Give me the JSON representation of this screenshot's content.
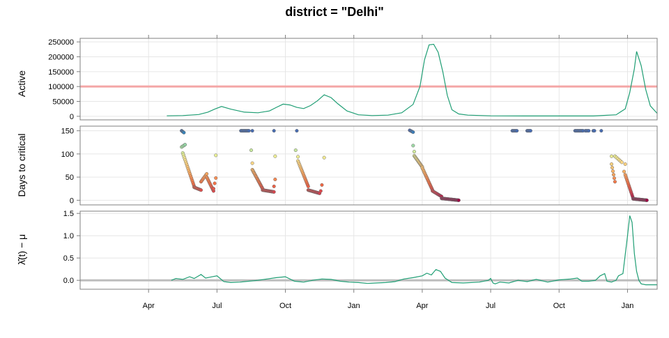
{
  "chart_data": {
    "type": "line",
    "title": "district = \"Delhi\"",
    "x_tick_labels": [
      "Apr",
      "Jul",
      "Oct",
      "Jan",
      "Apr",
      "Jul",
      "Oct",
      "Jan"
    ],
    "x_axis_month_index_range": [
      0,
      25.3
    ],
    "x_tick_month_index": [
      3,
      6,
      9,
      12,
      15,
      18,
      21,
      24
    ],
    "colors": {
      "line": "#1f9e74",
      "threshold": "#f4a6a6",
      "zero_line": "#bdbdbd",
      "point_outline": "#6b6b6b"
    },
    "panels": [
      {
        "ylabel": "Active",
        "type": "line",
        "ylim": [
          -12000,
          262000
        ],
        "y_ticks": [
          0,
          50000,
          100000,
          150000,
          200000,
          250000
        ],
        "y_tick_labels": [
          "0",
          "50000",
          "100000",
          "150000",
          "200000",
          "250000"
        ],
        "reference_line": 100000,
        "series": [
          {
            "x": [
              3.8,
              4.5,
              5.2,
              5.6,
              5.9,
              6.2,
              6.6,
              7.2,
              7.8,
              8.3,
              8.6,
              8.9,
              9.2,
              9.5,
              9.8,
              10.1,
              10.4,
              10.7,
              11.0,
              11.3,
              11.7,
              12.2,
              12.8,
              13.5,
              14.1,
              14.6,
              14.9,
              15.1,
              15.3,
              15.5,
              15.7,
              15.9,
              16.1,
              16.3,
              16.6,
              17.0,
              18.0,
              19.5,
              21.0,
              22.5,
              23.5,
              23.9,
              24.1,
              24.3,
              24.4,
              24.6,
              24.8,
              25.0,
              25.3
            ],
            "y": [
              1500,
              2500,
              6000,
              14000,
              24000,
              33000,
              24000,
              14000,
              12000,
              18000,
              30000,
              41000,
              38000,
              30000,
              26000,
              36000,
              52000,
              72000,
              63000,
              42000,
              18000,
              5000,
              2500,
              4000,
              12000,
              40000,
              100000,
              190000,
              240000,
              242000,
              215000,
              150000,
              70000,
              22000,
              8000,
              4000,
              1500,
              1000,
              1000,
              1200,
              5000,
              25000,
              80000,
              160000,
              218000,
              170000,
              90000,
              35000,
              10000
            ]
          }
        ]
      },
      {
        "ylabel": "Days to critical",
        "type": "scatter",
        "ylim": [
          -10,
          160
        ],
        "y_ticks": [
          0,
          50,
          100,
          150
        ],
        "y_tick_labels": [
          "0",
          "50",
          "100",
          "150"
        ],
        "point_color_scale": "value mapped red (0) -> orange -> pale yellow -> green -> blue -> indigo (150)",
        "clusters": [
          {
            "x0": 4.45,
            "x1": 4.55,
            "n": 5,
            "y0": 150,
            "y1": 146
          },
          {
            "x0": 4.45,
            "x1": 4.6,
            "n": 4,
            "y0": 115,
            "y1": 120
          },
          {
            "x0": 4.5,
            "x1": 5.0,
            "n": 20,
            "y0": 102,
            "y1": 30
          },
          {
            "x0": 5.0,
            "x1": 5.3,
            "n": 10,
            "y0": 28,
            "y1": 22
          },
          {
            "x0": 5.3,
            "x1": 5.55,
            "n": 8,
            "y0": 40,
            "y1": 57
          },
          {
            "x0": 5.55,
            "x1": 5.85,
            "n": 12,
            "y0": 50,
            "y1": 20
          },
          {
            "x0": 5.85,
            "x1": 5.95,
            "n": 3,
            "y0": 25,
            "y1": 48
          },
          {
            "x0": 5.95,
            "x1": 5.95,
            "n": 1,
            "y0": 97,
            "y1": 97
          },
          {
            "x0": 7.05,
            "x1": 7.4,
            "n": 10,
            "y0": 150,
            "y1": 150
          },
          {
            "x0": 7.55,
            "x1": 7.55,
            "n": 1,
            "y0": 150,
            "y1": 150
          },
          {
            "x0": 7.5,
            "x1": 7.55,
            "n": 2,
            "y0": 108,
            "y1": 80
          },
          {
            "x0": 7.55,
            "x1": 8.0,
            "n": 22,
            "y0": 66,
            "y1": 25
          },
          {
            "x0": 8.0,
            "x1": 8.5,
            "n": 18,
            "y0": 22,
            "y1": 18
          },
          {
            "x0": 8.5,
            "x1": 8.55,
            "n": 2,
            "y0": 30,
            "y1": 45
          },
          {
            "x0": 8.55,
            "x1": 8.55,
            "n": 1,
            "y0": 95,
            "y1": 95
          },
          {
            "x0": 8.5,
            "x1": 8.5,
            "n": 1,
            "y0": 150,
            "y1": 150
          },
          {
            "x0": 9.5,
            "x1": 9.5,
            "n": 1,
            "y0": 150,
            "y1": 150
          },
          {
            "x0": 9.45,
            "x1": 9.55,
            "n": 2,
            "y0": 108,
            "y1": 94
          },
          {
            "x0": 9.55,
            "x1": 10.0,
            "n": 18,
            "y0": 85,
            "y1": 30
          },
          {
            "x0": 10.0,
            "x1": 10.5,
            "n": 18,
            "y0": 22,
            "y1": 15
          },
          {
            "x0": 10.55,
            "x1": 10.6,
            "n": 2,
            "y0": 20,
            "y1": 33
          },
          {
            "x0": 10.7,
            "x1": 10.7,
            "n": 1,
            "y0": 92,
            "y1": 92
          },
          {
            "x0": 14.45,
            "x1": 14.6,
            "n": 5,
            "y0": 151,
            "y1": 147
          },
          {
            "x0": 14.6,
            "x1": 14.65,
            "n": 2,
            "y0": 118,
            "y1": 105
          },
          {
            "x0": 14.65,
            "x1": 15.0,
            "n": 18,
            "y0": 96,
            "y1": 72
          },
          {
            "x0": 15.0,
            "x1": 15.45,
            "n": 20,
            "y0": 70,
            "y1": 22
          },
          {
            "x0": 15.45,
            "x1": 15.85,
            "n": 14,
            "y0": 20,
            "y1": 8
          },
          {
            "x0": 15.85,
            "x1": 16.6,
            "n": 34,
            "y0": 4,
            "y1": 0
          },
          {
            "x0": 18.95,
            "x1": 19.15,
            "n": 6,
            "y0": 150,
            "y1": 150
          },
          {
            "x0": 19.6,
            "x1": 19.75,
            "n": 5,
            "y0": 150,
            "y1": 150
          },
          {
            "x0": 21.7,
            "x1": 22.05,
            "n": 10,
            "y0": 150,
            "y1": 150
          },
          {
            "x0": 22.15,
            "x1": 22.3,
            "n": 4,
            "y0": 150,
            "y1": 150
          },
          {
            "x0": 22.5,
            "x1": 22.55,
            "n": 2,
            "y0": 150,
            "y1": 150
          },
          {
            "x0": 22.85,
            "x1": 22.85,
            "n": 1,
            "y0": 150,
            "y1": 150
          },
          {
            "x0": 23.3,
            "x1": 23.3,
            "n": 1,
            "y0": 95,
            "y1": 95
          },
          {
            "x0": 23.3,
            "x1": 23.45,
            "n": 6,
            "y0": 78,
            "y1": 40
          },
          {
            "x0": 23.45,
            "x1": 23.75,
            "n": 6,
            "y0": 95,
            "y1": 82
          },
          {
            "x0": 23.85,
            "x1": 23.9,
            "n": 2,
            "y0": 62,
            "y1": 78
          },
          {
            "x0": 23.9,
            "x1": 24.25,
            "n": 16,
            "y0": 55,
            "y1": 4
          },
          {
            "x0": 24.25,
            "x1": 24.85,
            "n": 28,
            "y0": 3,
            "y1": 0
          }
        ]
      },
      {
        "ylabel": "λ̂(t) − μ",
        "type": "line",
        "ylim": [
          -0.2,
          1.55
        ],
        "y_ticks": [
          0,
          0.5,
          1,
          1.5
        ],
        "y_tick_labels": [
          "0.0",
          "0.5",
          "1.0",
          "1.5"
        ],
        "reference_line": 0,
        "series": [
          {
            "x": [
              4.0,
              4.2,
              4.5,
              4.8,
              5.0,
              5.3,
              5.5,
              5.7,
              6.0,
              6.3,
              6.6,
              7.0,
              7.4,
              7.8,
              8.2,
              8.6,
              9.0,
              9.4,
              9.8,
              10.2,
              10.6,
              11.0,
              11.4,
              11.8,
              12.2,
              12.6,
              13.0,
              13.4,
              13.8,
              14.2,
              14.6,
              15.0,
              15.2,
              15.4,
              15.6,
              15.8,
              16.0,
              16.3,
              16.8,
              17.5,
              17.9,
              18.0,
              18.1,
              18.2,
              18.4,
              18.8,
              19.2,
              19.6,
              20.0,
              20.5,
              21.0,
              21.5,
              21.8,
              22.0,
              22.3,
              22.6,
              22.8,
              23.0,
              23.1,
              23.3,
              23.5,
              23.6,
              23.8,
              24.0,
              24.1,
              24.2,
              24.3,
              24.4,
              24.5,
              24.6,
              24.8,
              25.1,
              25.3
            ],
            "y": [
              0.0,
              0.04,
              0.02,
              0.08,
              0.04,
              0.13,
              0.05,
              0.07,
              0.1,
              -0.03,
              -0.05,
              -0.04,
              -0.02,
              0.0,
              0.03,
              0.06,
              0.08,
              -0.02,
              -0.04,
              0.0,
              0.03,
              0.02,
              -0.02,
              -0.04,
              -0.05,
              -0.07,
              -0.06,
              -0.05,
              -0.03,
              0.03,
              0.06,
              0.1,
              0.16,
              0.12,
              0.24,
              0.2,
              0.05,
              -0.05,
              -0.06,
              -0.04,
              0.0,
              0.04,
              -0.06,
              -0.08,
              -0.04,
              -0.06,
              0.0,
              -0.03,
              0.02,
              -0.04,
              0.01,
              0.03,
              0.05,
              -0.02,
              -0.02,
              0.0,
              0.1,
              0.15,
              -0.02,
              -0.04,
              0.0,
              0.1,
              0.15,
              1.0,
              1.45,
              1.3,
              0.6,
              0.2,
              0.0,
              -0.08,
              -0.1,
              -0.1,
              -0.1
            ]
          }
        ]
      }
    ]
  }
}
